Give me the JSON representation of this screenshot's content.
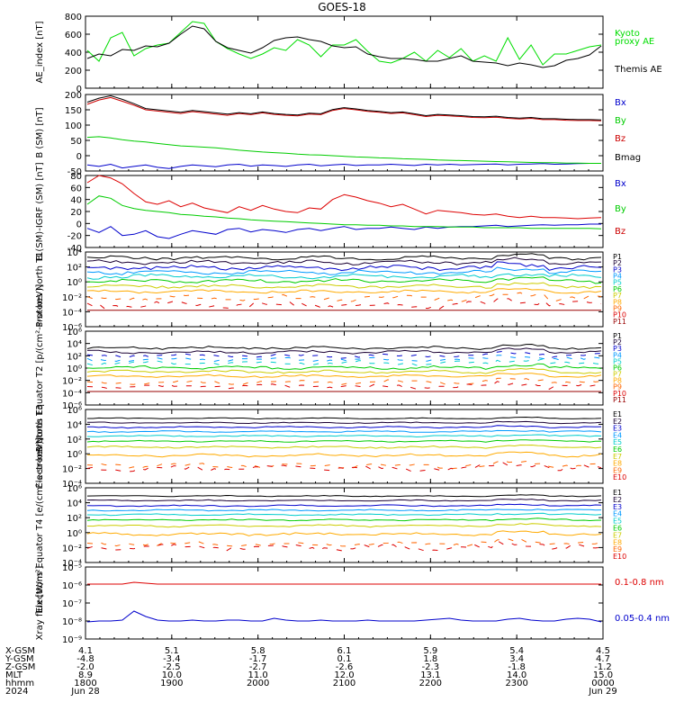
{
  "title": "GOES-18",
  "chart_data": [
    {
      "type": "line",
      "ylabel": "AE_index [nT]",
      "ylim": [
        0,
        800
      ],
      "yscale": "linear",
      "ticks": [
        "0",
        "200",
        "400",
        "600",
        "800"
      ],
      "ticks_v": [
        0,
        200,
        400,
        600,
        800
      ],
      "series": [
        {
          "name": "Kyoto proxy AE",
          "color": "#00dd00",
          "values": [
            420,
            300,
            560,
            620,
            360,
            440,
            480,
            500,
            620,
            740,
            720,
            520,
            440,
            380,
            330,
            380,
            450,
            420,
            540,
            480,
            350,
            480,
            480,
            540,
            410,
            300,
            280,
            330,
            400,
            300,
            420,
            340,
            440,
            300,
            360,
            300,
            560,
            320,
            480,
            260,
            380,
            380,
            420,
            460,
            480
          ]
        },
        {
          "name": "Themis AE",
          "color": "#000000",
          "values": [
            330,
            380,
            360,
            430,
            420,
            470,
            460,
            500,
            600,
            690,
            660,
            520,
            450,
            420,
            390,
            450,
            530,
            560,
            570,
            540,
            520,
            470,
            450,
            460,
            380,
            350,
            330,
            330,
            320,
            300,
            300,
            330,
            360,
            300,
            290,
            280,
            250,
            280,
            260,
            230,
            250,
            310,
            330,
            370,
            470
          ]
        }
      ]
    },
    {
      "type": "line",
      "ylabel": "B (SM) [nT]",
      "ylim": [
        -50,
        200
      ],
      "yscale": "linear",
      "ticks": [
        "-50",
        "0",
        "50",
        "100",
        "150",
        "200"
      ],
      "ticks_v": [
        -50,
        0,
        50,
        100,
        150,
        200
      ],
      "series": [
        {
          "name": "Bx",
          "color": "#0000cc",
          "values": [
            -30,
            -35,
            -28,
            -40,
            -35,
            -30,
            -38,
            -42,
            -35,
            -30,
            -33,
            -36,
            -30,
            -28,
            -34,
            -30,
            -32,
            -35,
            -30,
            -28,
            -33,
            -30,
            -28,
            -32,
            -30,
            -30,
            -28,
            -30,
            -32,
            -28,
            -30,
            -28,
            -30,
            -29,
            -28,
            -27,
            -30,
            -28,
            -27,
            -26,
            -28,
            -27,
            -26,
            -25,
            -25
          ]
        },
        {
          "name": "By",
          "color": "#00cc00",
          "values": [
            60,
            62,
            58,
            52,
            48,
            45,
            40,
            36,
            32,
            30,
            28,
            26,
            22,
            18,
            15,
            12,
            10,
            8,
            5,
            3,
            2,
            0,
            -2,
            -4,
            -5,
            -7,
            -8,
            -10,
            -11,
            -12,
            -14,
            -15,
            -16,
            -17,
            -18,
            -19,
            -20,
            -21,
            -22,
            -23,
            -23,
            -24,
            -24,
            -25,
            -25
          ]
        },
        {
          "name": "Bz",
          "color": "#cc0000",
          "values": [
            168,
            182,
            190,
            178,
            165,
            150,
            146,
            142,
            138,
            144,
            140,
            136,
            132,
            138,
            134,
            140,
            135,
            132,
            130,
            136,
            134,
            148,
            154,
            150,
            145,
            142,
            138,
            140,
            134,
            128,
            132,
            130,
            128,
            125,
            124,
            126,
            122,
            120,
            122,
            118,
            118,
            116,
            115,
            115,
            114
          ]
        },
        {
          "name": "Bmag",
          "color": "#000000",
          "values": [
            175,
            188,
            196,
            184,
            170,
            154,
            150,
            146,
            142,
            148,
            144,
            140,
            136,
            141,
            137,
            143,
            138,
            135,
            133,
            139,
            137,
            151,
            157,
            153,
            148,
            145,
            141,
            143,
            137,
            131,
            135,
            133,
            131,
            128,
            127,
            129,
            125,
            123,
            125,
            121,
            121,
            119,
            118,
            118,
            117
          ]
        }
      ]
    },
    {
      "type": "line",
      "ylabel": "B (SM)-IGRF (SM) [nT]",
      "ylim": [
        -40,
        80
      ],
      "yscale": "linear",
      "ticks": [
        "-40",
        "-20",
        "0",
        "20",
        "40",
        "60",
        "80"
      ],
      "ticks_v": [
        -40,
        -20,
        0,
        20,
        40,
        60,
        80
      ],
      "series": [
        {
          "name": "Bx",
          "color": "#0000cc",
          "values": [
            -8,
            -15,
            -5,
            -20,
            -18,
            -12,
            -22,
            -25,
            -18,
            -12,
            -15,
            -18,
            -10,
            -8,
            -14,
            -10,
            -12,
            -15,
            -10,
            -8,
            -12,
            -8,
            -5,
            -10,
            -8,
            -8,
            -6,
            -8,
            -10,
            -6,
            -8,
            -6,
            -5,
            -5,
            -4,
            -3,
            -5,
            -4,
            -3,
            -2,
            -3,
            -2,
            -2,
            -1,
            -1
          ]
        },
        {
          "name": "By",
          "color": "#00cc00",
          "values": [
            32,
            46,
            42,
            30,
            25,
            22,
            20,
            18,
            15,
            14,
            12,
            11,
            9,
            8,
            6,
            5,
            4,
            3,
            2,
            1,
            0,
            -1,
            -2,
            -2,
            -3,
            -3,
            -4,
            -4,
            -5,
            -5,
            -5,
            -6,
            -6,
            -6,
            -7,
            -7,
            -7,
            -7,
            -8,
            -8,
            -8,
            -8,
            -8,
            -8,
            -9
          ]
        },
        {
          "name": "Bz",
          "color": "#dd0000",
          "values": [
            68,
            80,
            76,
            66,
            50,
            36,
            32,
            38,
            28,
            34,
            26,
            22,
            18,
            28,
            22,
            30,
            24,
            20,
            18,
            26,
            24,
            40,
            48,
            44,
            38,
            34,
            28,
            32,
            24,
            16,
            22,
            20,
            18,
            15,
            14,
            16,
            12,
            10,
            12,
            10,
            10,
            9,
            8,
            9,
            10
          ]
        }
      ]
    },
    {
      "type": "line",
      "ylabel": "Protons North T1",
      "ylim": [
        -6,
        4
      ],
      "yscale": "log10",
      "ticks": [
        "10⁻⁶",
        "10⁻⁴",
        "10⁻²",
        "10⁰",
        "10²",
        "10⁴"
      ],
      "ticks_v": [
        -6,
        -4,
        -2,
        0,
        2,
        4
      ],
      "labels": [
        "P1",
        "P2",
        "P3",
        "P4",
        "P5",
        "P6",
        "P7",
        "P8",
        "P9",
        "P10",
        "P11"
      ],
      "colors": [
        "#000000",
        "#1a0033",
        "#0000cc",
        "#0099ff",
        "#00cccc",
        "#00cc00",
        "#cccc00",
        "#ffaa00",
        "#ff6600",
        "#dd0000",
        "#990000"
      ],
      "base": [
        3.2,
        2.6,
        1.9,
        1.3,
        0.7,
        0.1,
        -0.6,
        -1.3,
        -2.2,
        -3.1,
        -3.8
      ],
      "amp": [
        0.35,
        0.4,
        0.45,
        0.45,
        0.45,
        0.4,
        0.35,
        0.3,
        0.6,
        0.7,
        0.0
      ]
    },
    {
      "type": "line",
      "ylabel": "Protons Equator T2 [p/(cm²-s-sr-keV)]",
      "ylim": [
        -6,
        6
      ],
      "yscale": "log10",
      "ticks": [
        "10⁻⁶",
        "10⁻⁴",
        "10⁻²",
        "10⁰",
        "10²",
        "10⁴",
        "10⁶"
      ],
      "ticks_v": [
        -6,
        -4,
        -2,
        0,
        2,
        4,
        6
      ],
      "labels": [
        "P1",
        "P2",
        "P3",
        "P4",
        "P5",
        "P6",
        "P7",
        "P8",
        "P9",
        "P10",
        "P11"
      ],
      "colors": [
        "#000000",
        "#1a0033",
        "#0000cc",
        "#0099ff",
        "#00cccc",
        "#00cc00",
        "#cccc00",
        "#ffaa00",
        "#ff6600",
        "#dd0000",
        "#990000"
      ],
      "base": [
        3.3,
        2.6,
        2.0,
        1.4,
        0.8,
        0.1,
        -0.6,
        -1.3,
        -2.3,
        -3.0,
        -3.8
      ],
      "amp": [
        0.35,
        0.4,
        0.5,
        0.5,
        0.5,
        0.4,
        0.35,
        0.3,
        0.5,
        0.6,
        0.0
      ]
    },
    {
      "type": "line",
      "ylabel": "Electrons North T3",
      "ylim": [
        -4,
        6
      ],
      "yscale": "log10",
      "ticks": [
        "10⁻⁴",
        "10⁻²",
        "10⁰",
        "10²",
        "10⁴",
        "10⁶"
      ],
      "ticks_v": [
        -4,
        -2,
        0,
        2,
        4,
        6
      ],
      "labels": [
        "E1",
        "E2",
        "E3",
        "E4",
        "E5",
        "E6",
        "E7",
        "E8",
        "E9",
        "E10"
      ],
      "colors": [
        "#000000",
        "#1a0033",
        "#0000cc",
        "#0099ff",
        "#00cccc",
        "#00cc00",
        "#cccc00",
        "#ffaa00",
        "#ff6600",
        "#dd0000"
      ],
      "base": [
        4.8,
        4.2,
        3.6,
        3.0,
        2.4,
        1.7,
        0.9,
        -0.2,
        -1.6,
        -2.0
      ],
      "amp": [
        0.1,
        0.12,
        0.15,
        0.15,
        0.15,
        0.15,
        0.2,
        0.3,
        0.5,
        0.6
      ]
    },
    {
      "type": "line",
      "ylabel": "Electrons Equator T4 [e/(cm²-s-sr-keV)]",
      "ylim": [
        -4,
        6
      ],
      "yscale": "log10",
      "ticks": [
        "10⁻⁴",
        "10⁻²",
        "10⁰",
        "10²",
        "10⁴",
        "10⁶"
      ],
      "ticks_v": [
        -4,
        -2,
        0,
        2,
        4,
        6
      ],
      "labels": [
        "E1",
        "E2",
        "E3",
        "E4",
        "E5",
        "E6",
        "E7",
        "E8",
        "E9",
        "E10"
      ],
      "colors": [
        "#000000",
        "#1a0033",
        "#0000cc",
        "#0099ff",
        "#00cccc",
        "#00cc00",
        "#cccc00",
        "#ffaa00",
        "#ff6600",
        "#dd0000"
      ],
      "base": [
        4.9,
        4.3,
        3.6,
        3.0,
        2.4,
        1.7,
        0.9,
        -0.2,
        -1.5,
        -2.0
      ],
      "amp": [
        0.1,
        0.12,
        0.15,
        0.15,
        0.15,
        0.15,
        0.2,
        0.3,
        0.5,
        0.6
      ]
    },
    {
      "type": "line",
      "ylabel": "Xray flux [W/m²]",
      "ylim": [
        -9,
        -5
      ],
      "yscale": "log10",
      "ticks": [
        "10⁻⁹",
        "10⁻⁸",
        "10⁻⁷",
        "10⁻⁶",
        "10⁻⁵"
      ],
      "ticks_v": [
        -9,
        -8,
        -7,
        -6,
        -5
      ],
      "series": [
        {
          "name": "0.1-0.8 nm",
          "color": "#dd0000",
          "values": [
            -5.95,
            -5.95,
            -5.95,
            -5.95,
            -5.85,
            -5.9,
            -5.95,
            -5.95,
            -5.95,
            -5.95,
            -5.95,
            -5.95,
            -5.95,
            -5.95,
            -5.95,
            -5.95,
            -5.95,
            -5.95,
            -5.95,
            -5.95,
            -5.95,
            -5.95,
            -5.95,
            -5.95,
            -5.95,
            -5.95,
            -5.95,
            -5.95,
            -5.95,
            -5.95,
            -5.95,
            -5.95,
            -5.95,
            -5.95,
            -5.95,
            -5.95,
            -5.95,
            -5.95,
            -5.95,
            -5.95,
            -5.95,
            -5.95,
            -5.95,
            -5.95,
            -5.95
          ]
        },
        {
          "name": "0.05-0.4 nm",
          "color": "#0000cc",
          "values": [
            -8.05,
            -8.0,
            -8.0,
            -7.95,
            -7.45,
            -7.75,
            -7.95,
            -8.0,
            -8.0,
            -7.95,
            -8.0,
            -8.0,
            -7.95,
            -7.95,
            -8.0,
            -8.0,
            -7.85,
            -7.95,
            -8.0,
            -8.0,
            -7.95,
            -8.0,
            -8.0,
            -8.0,
            -7.95,
            -8.0,
            -8.0,
            -8.0,
            -8.0,
            -7.95,
            -7.9,
            -7.85,
            -7.95,
            -8.0,
            -8.0,
            -8.0,
            -7.9,
            -7.85,
            -7.95,
            -8.0,
            -8.0,
            -7.9,
            -7.85,
            -7.9,
            -8.05
          ]
        }
      ]
    }
  ],
  "trace_labels": {
    "p0": [
      {
        "text": "Kyoto",
        "color": "#00dd00"
      },
      {
        "text": "proxy AE",
        "color": "#00dd00"
      },
      {
        "text": "Themis AE",
        "color": "#000000"
      }
    ],
    "p1": [
      {
        "text": "Bx",
        "color": "#0000cc"
      },
      {
        "text": "By",
        "color": "#00cc00"
      },
      {
        "text": "Bz",
        "color": "#cc0000"
      },
      {
        "text": "Bmag",
        "color": "#000000"
      }
    ],
    "p2": [
      {
        "text": "Bx",
        "color": "#0000cc"
      },
      {
        "text": "By",
        "color": "#00cc00"
      },
      {
        "text": "Bz",
        "color": "#cc0000"
      }
    ],
    "p7": [
      {
        "text": "0.1-0.8 nm",
        "color": "#dd0000"
      },
      {
        "text": "0.05-0.4 nm",
        "color": "#0000cc"
      }
    ]
  },
  "footer": {
    "labels": [
      "X-GSM",
      "Y-GSM",
      "Z-GSM",
      "MLT",
      "hhmm",
      "2024"
    ],
    "columns": [
      [
        "4.1",
        "-4.8",
        "-2.0",
        "8.9",
        "1800",
        "Jun 28"
      ],
      [
        "5.1",
        "-3.4",
        "-2.5",
        "10.0",
        "1900",
        ""
      ],
      [
        "5.8",
        "-1.7",
        "-2.7",
        "11.0",
        "2000",
        ""
      ],
      [
        "6.1",
        "0.1",
        "-2.6",
        "12.0",
        "2100",
        ""
      ],
      [
        "5.9",
        "1.8",
        "-2.3",
        "13.1",
        "2200",
        ""
      ],
      [
        "5.4",
        "3.4",
        "-1.8",
        "14.0",
        "2300",
        ""
      ],
      [
        "4.5",
        "4.7",
        "-1.2",
        "15.0",
        "0000",
        "Jun 29"
      ]
    ]
  }
}
